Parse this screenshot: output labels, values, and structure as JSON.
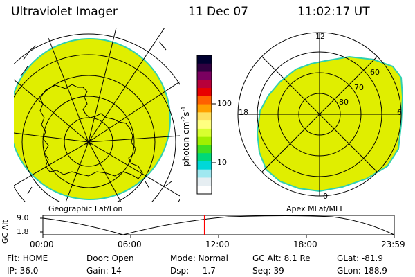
{
  "header": {
    "title": "Ultraviolet Imager",
    "date": "11 Dec 07",
    "time": "11:02:17 UT"
  },
  "left_panel": {
    "label": "Geographic Lat/Lon"
  },
  "right_panel": {
    "label": "Apex MLat/MLT",
    "mlt_labels": {
      "top": "12",
      "left": "18",
      "right": "6",
      "bottom": "0"
    },
    "lat_labels": [
      "60",
      "70",
      "80"
    ]
  },
  "colorbar": {
    "unit_label": "photon cm",
    "unit_sup1": "-2",
    "unit_mid": "s",
    "unit_sup2": "-1",
    "scale": "log",
    "ticks": [
      "100",
      "10"
    ],
    "colors": [
      "#000030",
      "#300040",
      "#7a0060",
      "#b8003a",
      "#e80000",
      "#ff6000",
      "#ffa000",
      "#ffe060",
      "#ffff80",
      "#d8ff30",
      "#a0f000",
      "#40e020",
      "#00d878",
      "#00d8d8",
      "#a0e8f0",
      "#e6eef2",
      "#ffffff"
    ]
  },
  "altitude_plot": {
    "y_label": "GC Alt",
    "y_ticks": [
      "9.0",
      "1.8"
    ],
    "x_ticks": [
      "00:00",
      "06:00",
      "12:00",
      "18:00",
      "23:59"
    ],
    "current_hour": 11.04
  },
  "info": {
    "row1": [
      "Flt: HOME",
      "Door: Open",
      "Mode: Normal",
      "GC Alt: 8.1 Re",
      "GLat: -81.9"
    ],
    "row2": [
      "IP: 36.0",
      "Gain: 14",
      "Dsp:    -1.7",
      "Seq: 39",
      "GLon: 188.9"
    ]
  },
  "colors": {
    "fill": "#e0ee00",
    "rim": "#30d0b0",
    "marker": "#ff0000"
  }
}
